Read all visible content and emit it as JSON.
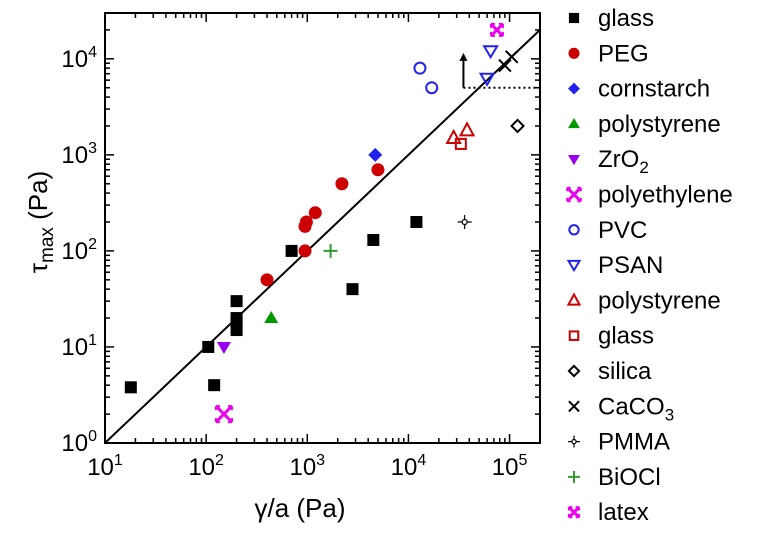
{
  "chart_data": {
    "type": "scatter",
    "xscale": "log",
    "yscale": "log",
    "xlim": [
      10,
      200000
    ],
    "ylim": [
      1,
      30000
    ],
    "xlabel": "γ/a (Pa)",
    "ylabel": "τ_max (Pa)",
    "x_ticks": [
      {
        "base": "10",
        "exp": "1",
        "value": 10
      },
      {
        "base": "10",
        "exp": "2",
        "value": 100
      },
      {
        "base": "10",
        "exp": "3",
        "value": 1000
      },
      {
        "base": "10",
        "exp": "4",
        "value": 10000
      },
      {
        "base": "10",
        "exp": "5",
        "value": 100000
      }
    ],
    "y_ticks": [
      {
        "base": "10",
        "exp": "0",
        "value": 1
      },
      {
        "base": "10",
        "exp": "1",
        "value": 10
      },
      {
        "base": "10",
        "exp": "2",
        "value": 100
      },
      {
        "base": "10",
        "exp": "3",
        "value": 1000
      },
      {
        "base": "10",
        "exp": "4",
        "value": 10000
      }
    ],
    "reference_line": {
      "x": [
        10,
        200000
      ],
      "y": [
        1,
        20000
      ]
    },
    "bound_marker": {
      "x_start": 35000,
      "x_end": 200000,
      "y": 5000,
      "arrow_x": 35000,
      "arrow_y_from": 5000,
      "arrow_y_to": 11000
    },
    "series": [
      {
        "name": "glass",
        "marker": "filled-square",
        "color": "#000000",
        "points": [
          [
            18,
            3.8
          ],
          [
            105,
            10
          ],
          [
            120,
            4
          ],
          [
            200,
            30
          ],
          [
            200,
            20
          ],
          [
            200,
            18
          ],
          [
            200,
            15
          ],
          [
            700,
            100
          ],
          [
            2800,
            40
          ],
          [
            4500,
            130
          ],
          [
            12000,
            200
          ]
        ]
      },
      {
        "name": "PEG",
        "marker": "filled-circle",
        "color": "#cc0000",
        "points": [
          [
            400,
            50
          ],
          [
            950,
            100
          ],
          [
            950,
            180
          ],
          [
            980,
            200
          ],
          [
            1200,
            250
          ],
          [
            2200,
            500
          ],
          [
            5000,
            700
          ]
        ]
      },
      {
        "name": "cornstarch",
        "marker": "filled-diamond",
        "color": "#2222ee",
        "points": [
          [
            4700,
            1000
          ]
        ]
      },
      {
        "name": "polystyrene",
        "marker": "filled-triangle-up",
        "color": "#009900",
        "points": [
          [
            440,
            20
          ]
        ]
      },
      {
        "name": "ZrO",
        "name_sub": "2",
        "marker": "filled-triangle-down",
        "color": "#9900ee",
        "points": [
          [
            150,
            10
          ]
        ]
      },
      {
        "name": "polyethylene",
        "marker": "fancy-x",
        "color": "#ee00ee",
        "points": [
          [
            150,
            2
          ]
        ]
      },
      {
        "name": "PVC",
        "marker": "open-circle",
        "color": "#2222ee",
        "points": [
          [
            13000,
            8000
          ],
          [
            17000,
            5000
          ]
        ]
      },
      {
        "name": "PSAN",
        "marker": "open-triangle-down",
        "color": "#2222ee",
        "points": [
          [
            60000,
            6200
          ],
          [
            65000,
            12000
          ]
        ]
      },
      {
        "name": "polystyrene",
        "marker": "open-triangle-up",
        "color": "#cc0000",
        "points": [
          [
            28000,
            1500
          ],
          [
            38000,
            1800
          ]
        ]
      },
      {
        "name": "glass",
        "marker": "open-square",
        "color": "#cc0000",
        "points": [
          [
            33000,
            1300
          ]
        ]
      },
      {
        "name": "silica",
        "marker": "open-diamond",
        "color": "#000000",
        "points": [
          [
            120000,
            2000
          ]
        ]
      },
      {
        "name": "CaCO",
        "name_sub": "3",
        "marker": "cross-x",
        "color": "#000000",
        "points": [
          [
            90000,
            8500
          ],
          [
            105000,
            10500
          ]
        ]
      },
      {
        "name": "PMMA",
        "marker": "open-plus",
        "color": "#000000",
        "points": [
          [
            36000,
            200
          ]
        ]
      },
      {
        "name": "BiOCl",
        "marker": "plus",
        "color": "#339933",
        "points": [
          [
            1700,
            100
          ]
        ]
      },
      {
        "name": "latex",
        "marker": "fancy-x-small",
        "color": "#ee00ee",
        "points": [
          [
            75000,
            20000
          ]
        ]
      }
    ]
  }
}
